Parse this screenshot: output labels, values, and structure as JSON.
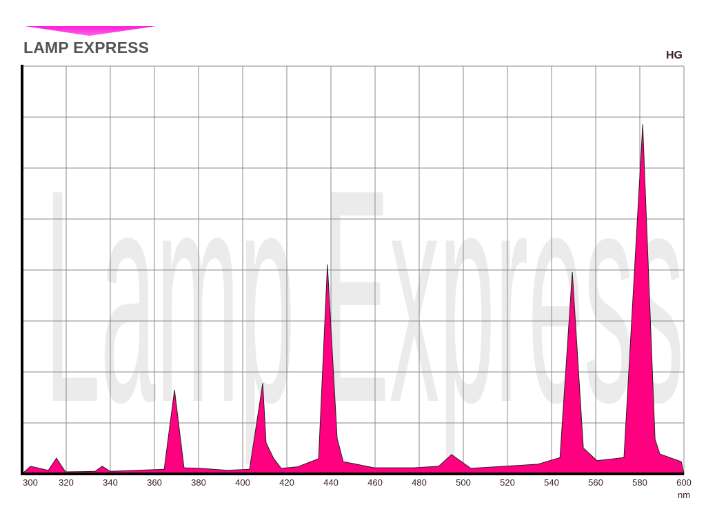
{
  "brand": {
    "name": "LAMP EXPRESS",
    "accent_color": "#ff1ad9"
  },
  "watermark": "Lamp Express",
  "chart_data": {
    "type": "area",
    "title": "",
    "series_tag": "HG",
    "xlabel": "nm",
    "ylabel": "",
    "xlim": [
      300,
      600
    ],
    "ylim": [
      0,
      8
    ],
    "x_ticks": [
      300,
      320,
      340,
      360,
      380,
      400,
      420,
      440,
      460,
      480,
      500,
      520,
      540,
      560,
      580,
      600
    ],
    "y_ticks_shown": false,
    "grid": true,
    "fill_color": "#ff0080",
    "x": [
      300,
      303.8,
      311.9,
      315.6,
      319.7,
      333.1,
      336.3,
      340,
      364.4,
      369.1,
      373.4,
      380.6,
      393.1,
      403.1,
      409.1,
      410.6,
      414.1,
      417.5,
      425,
      434.4,
      438.4,
      442.8,
      445.6,
      459.7,
      468.1,
      477.5,
      488.8,
      494.7,
      503.4,
      533.8,
      543.8,
      549.4,
      554.4,
      560.6,
      572.8,
      581.3,
      586.9,
      589.1,
      598.8,
      600
    ],
    "y": [
      0,
      0.15,
      0.07,
      0.31,
      0.04,
      0.05,
      0.15,
      0.05,
      0.09,
      1.65,
      0.12,
      0.11,
      0.07,
      0.09,
      1.78,
      0.61,
      0.3,
      0.11,
      0.14,
      0.3,
      4.11,
      0.7,
      0.24,
      0.12,
      0.12,
      0.12,
      0.15,
      0.38,
      0.11,
      0.19,
      0.32,
      3.96,
      0.51,
      0.26,
      0.32,
      6.86,
      0.68,
      0.39,
      0.24,
      0
    ]
  }
}
